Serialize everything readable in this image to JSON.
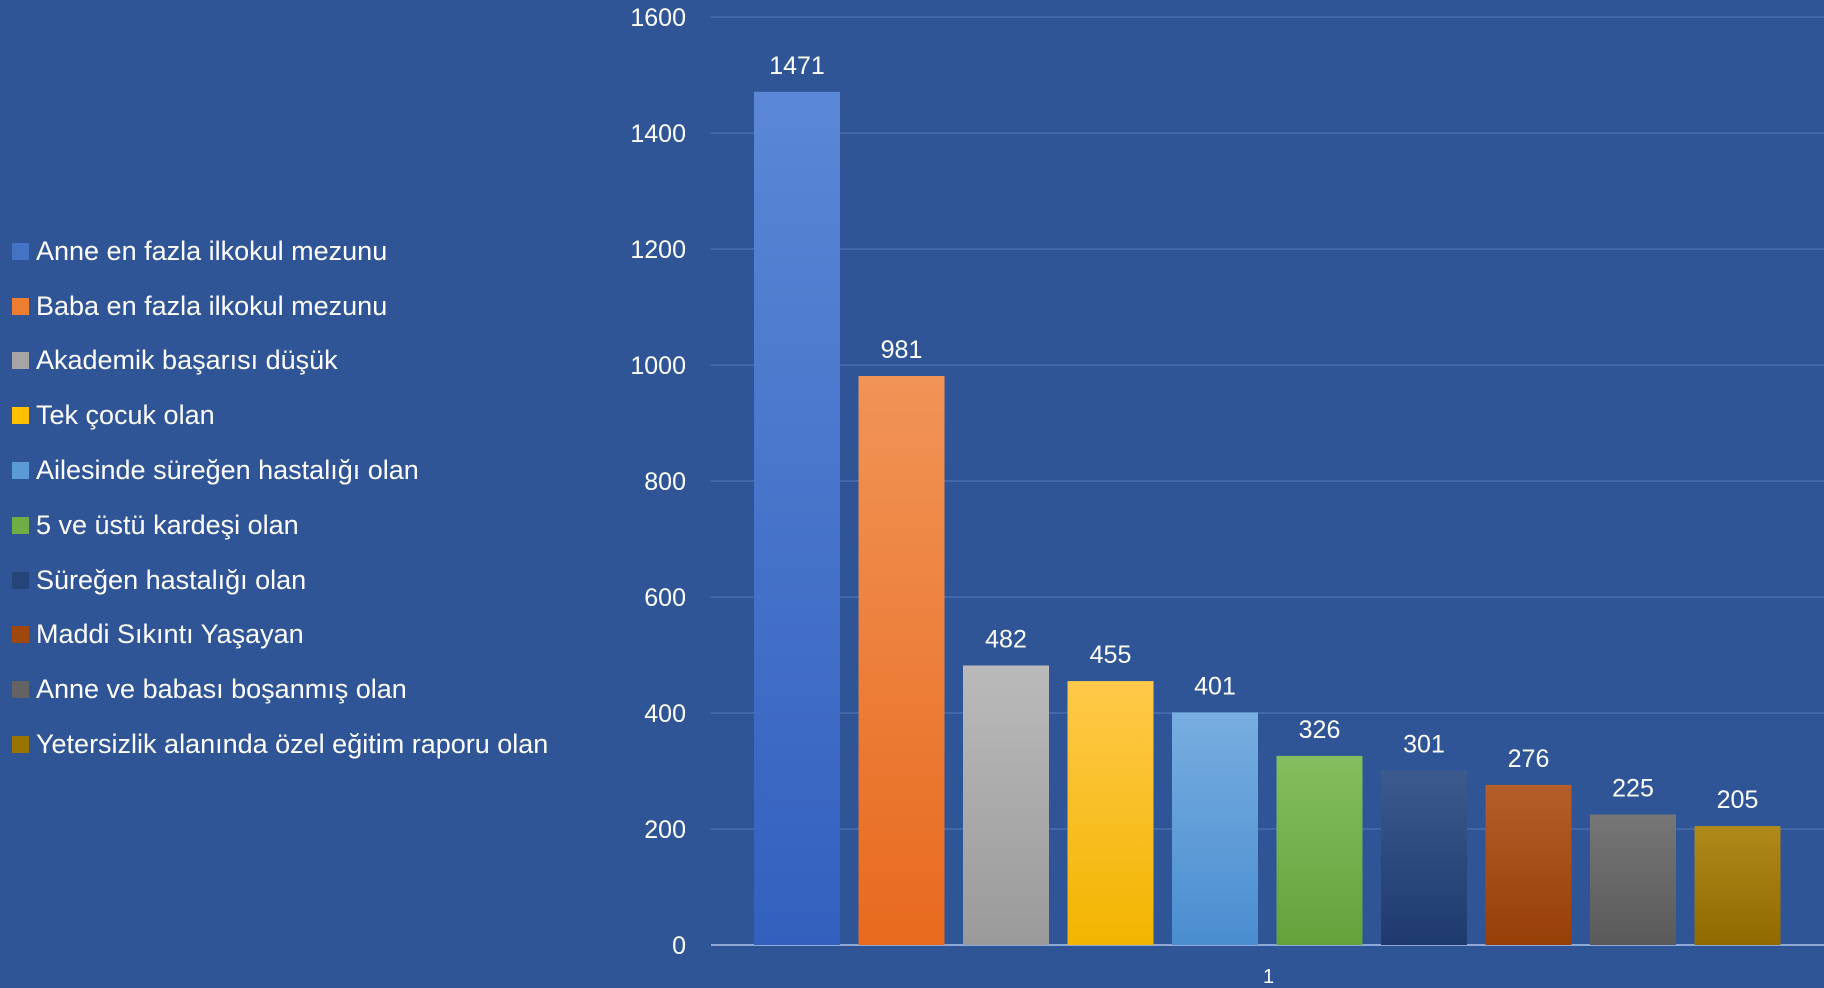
{
  "chart_data": {
    "type": "bar",
    "categories": [
      "1"
    ],
    "series": [
      {
        "name": "Anne en fazla ilkokul mezunu",
        "values": [
          1471
        ],
        "color": "#4472C4",
        "color_light": "#5B87D6",
        "color_dark": "#3360BE"
      },
      {
        "name": "Baba en fazla ilkokul mezunu",
        "values": [
          981
        ],
        "color": "#ED7D31",
        "color_light": "#F19457",
        "color_dark": "#E86A1E"
      },
      {
        "name": "Akademik başarısı düşük",
        "values": [
          482
        ],
        "color": "#A5A5A5",
        "color_light": "#BABABA",
        "color_dark": "#9A9A9A"
      },
      {
        "name": "Tek çocuk olan",
        "values": [
          455
        ],
        "color": "#FFC000",
        "color_light": "#FFC94A",
        "color_dark": "#F2B500"
      },
      {
        "name": "Ailesinde süreğen hastalığı olan",
        "values": [
          401
        ],
        "color": "#5B9BD5",
        "color_light": "#78AEE0",
        "color_dark": "#4A8DD0"
      },
      {
        "name": "5 ve üstü kardeşi olan",
        "values": [
          326
        ],
        "color": "#70AD47",
        "color_light": "#84BE5E",
        "color_dark": "#64A23C"
      },
      {
        "name": "Süreğen hastalığı olan",
        "values": [
          301
        ],
        "color": "#264478",
        "color_light": "#3C5A8E",
        "color_dark": "#1E3A6E"
      },
      {
        "name": "Maddi Sıkıntı Yaşayan",
        "values": [
          276
        ],
        "color": "#9E480E",
        "color_light": "#B45E2A",
        "color_dark": "#963F06"
      },
      {
        "name": "Anne ve babası boşanmış olan",
        "values": [
          225
        ],
        "color": "#636363",
        "color_light": "#767676",
        "color_dark": "#5A5A5A"
      },
      {
        "name": "Yetersizlik alanında özel eğitim raporu olan",
        "values": [
          205
        ],
        "color": "#997300",
        "color_light": "#B08A1A",
        "color_dark": "#8E6A00"
      }
    ],
    "ylim": [
      0,
      1600
    ],
    "yticks": [
      0,
      200,
      400,
      600,
      800,
      1000,
      1200,
      1400,
      1600
    ],
    "grid": true,
    "legend_position": "left",
    "data_labels": true,
    "title": "",
    "xlabel": "",
    "ylabel": ""
  },
  "colors": {
    "background": "#2F5597",
    "gridline": "#4A6FB0",
    "axis_text": "#FFFFFF"
  }
}
